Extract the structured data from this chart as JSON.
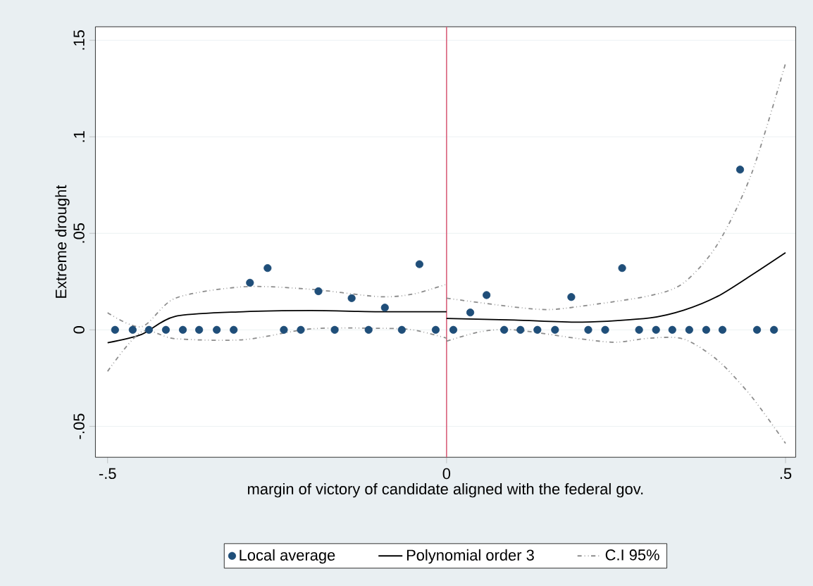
{
  "chart_data": {
    "type": "scatter",
    "xlabel": "margin of victory of candidate aligned with the federal gov.",
    "ylabel": "Extreme drought",
    "xlim": [
      -0.518,
      0.515
    ],
    "ylim": [
      -0.066,
      0.157
    ],
    "xticks": [
      {
        "value": -0.5,
        "label": "-.5"
      },
      0,
      {
        "value": 0.5,
        "label": ".5"
      }
    ],
    "yticks": [
      {
        "value": -0.05,
        "label": "-.05"
      },
      0,
      {
        "value": 0.05,
        "label": ".05"
      },
      {
        "value": 0.1,
        "label": ".1"
      },
      {
        "value": 0.15,
        "label": ".15"
      }
    ],
    "grid": "y",
    "legend": "bottom",
    "ref_lines": [
      {
        "axis": "x",
        "value": 0,
        "color": "#d9607a"
      }
    ],
    "series": [
      {
        "name": "Local average",
        "color": "#1f4e79",
        "marker": "circle",
        "x": [
          -0.489,
          -0.463,
          -0.439,
          -0.414,
          -0.389,
          -0.365,
          -0.339,
          -0.314,
          -0.29,
          -0.264,
          -0.24,
          -0.215,
          -0.189,
          -0.165,
          -0.14,
          -0.115,
          -0.091,
          -0.066,
          -0.04,
          -0.016,
          0.01,
          0.035,
          0.059,
          0.085,
          0.109,
          0.134,
          0.16,
          0.184,
          0.209,
          0.234,
          0.259,
          0.284,
          0.309,
          0.333,
          0.358,
          0.383,
          0.407,
          0.433,
          0.458,
          0.483
        ],
        "values": [
          0,
          0,
          0,
          0,
          0,
          0,
          0,
          0,
          0.0244,
          0.032,
          0,
          0,
          0.02,
          0,
          0.0164,
          0,
          0.0115,
          0,
          0.034,
          0,
          0,
          0.009,
          0.018,
          0,
          0,
          0,
          0,
          0.017,
          0,
          0,
          0.032,
          0,
          0,
          0,
          0,
          0,
          0,
          0.083,
          0,
          0
        ]
      },
      {
        "name": "Polynomial order 3",
        "type": "line",
        "color": "#000000",
        "marker": "none",
        "line_style": "solid",
        "x": [
          -0.5,
          -0.45,
          -0.4,
          -0.3,
          -0.2,
          -0.1,
          0
        ],
        "values": [
          -0.0067,
          -0.0024,
          0.007,
          0.0094,
          0.01,
          0.0094,
          0.0094
        ]
      },
      {
        "type": "line",
        "color": "#000000",
        "marker": "none",
        "line_style": "solid",
        "x": [
          0,
          0.1,
          0.2,
          0.3,
          0.35,
          0.4,
          0.45,
          0.5
        ],
        "values": [
          0.0059,
          0.0051,
          0.004,
          0.0062,
          0.0102,
          0.0174,
          0.0284,
          0.04
        ]
      },
      {
        "name": "C.I 95%",
        "type": "line",
        "color": "#8c8c8c",
        "marker": "none",
        "line_style": "dashed",
        "x": [
          -0.5,
          -0.45,
          -0.4,
          -0.3,
          -0.2,
          -0.1,
          -0.05,
          0
        ],
        "values": [
          0.0089,
          0.0016,
          0.0164,
          0.0223,
          0.021,
          0.0172,
          0.0185,
          0.0236
        ]
      },
      {
        "type": "line",
        "color": "#8c8c8c",
        "marker": "none",
        "line_style": "dashed",
        "x": [
          0,
          0.1,
          0.15,
          0.2,
          0.3,
          0.35,
          0.4,
          0.45,
          0.5
        ],
        "values": [
          0.0164,
          0.0118,
          0.0105,
          0.0123,
          0.0177,
          0.0244,
          0.0445,
          0.081,
          0.138
        ]
      },
      {
        "type": "line",
        "color": "#8c8c8c",
        "marker": "none",
        "line_style": "dashed",
        "x": [
          -0.5,
          -0.45,
          -0.4,
          -0.3,
          -0.2,
          -0.1,
          -0.05,
          0
        ],
        "values": [
          -0.0215,
          -0.001,
          -0.0046,
          -0.0051,
          0.0005,
          0.0008,
          0,
          -0.0043
        ]
      },
      {
        "type": "line",
        "color": "#8c8c8c",
        "marker": "none",
        "line_style": "dashed",
        "x": [
          0,
          0.05,
          0.1,
          0.2,
          0.25,
          0.3,
          0.35,
          0.4,
          0.45,
          0.5
        ],
        "values": [
          -0.0059,
          -0.001,
          0,
          -0.0048,
          -0.0064,
          -0.0043,
          -0.0048,
          -0.0158,
          -0.0346,
          -0.0588
        ]
      }
    ]
  }
}
